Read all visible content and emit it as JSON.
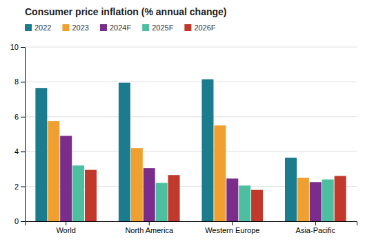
{
  "chart_data": {
    "type": "bar",
    "title": "Consumer price inflation (% annual change)",
    "categories": [
      "World",
      "North America",
      "Western Europe",
      "Asia-Pacific"
    ],
    "series": [
      {
        "name": "2022",
        "color": "#1a7c8c",
        "values": [
          7.65,
          7.95,
          8.15,
          3.65
        ]
      },
      {
        "name": "2023",
        "color": "#f0a030",
        "values": [
          5.75,
          4.2,
          5.5,
          2.5
        ]
      },
      {
        "name": "2024F",
        "color": "#7b2d8b",
        "values": [
          4.9,
          3.05,
          2.45,
          2.25
        ]
      },
      {
        "name": "2025F",
        "color": "#4dbfa0",
        "values": [
          3.2,
          2.2,
          2.05,
          2.4
        ]
      },
      {
        "name": "2026F",
        "color": "#c0392b",
        "values": [
          2.95,
          2.65,
          1.8,
          2.6
        ]
      }
    ],
    "ylim": [
      0,
      10
    ],
    "yticks": [
      0,
      2,
      4,
      6,
      8,
      10
    ],
    "grid": true,
    "legend": "top-left"
  }
}
